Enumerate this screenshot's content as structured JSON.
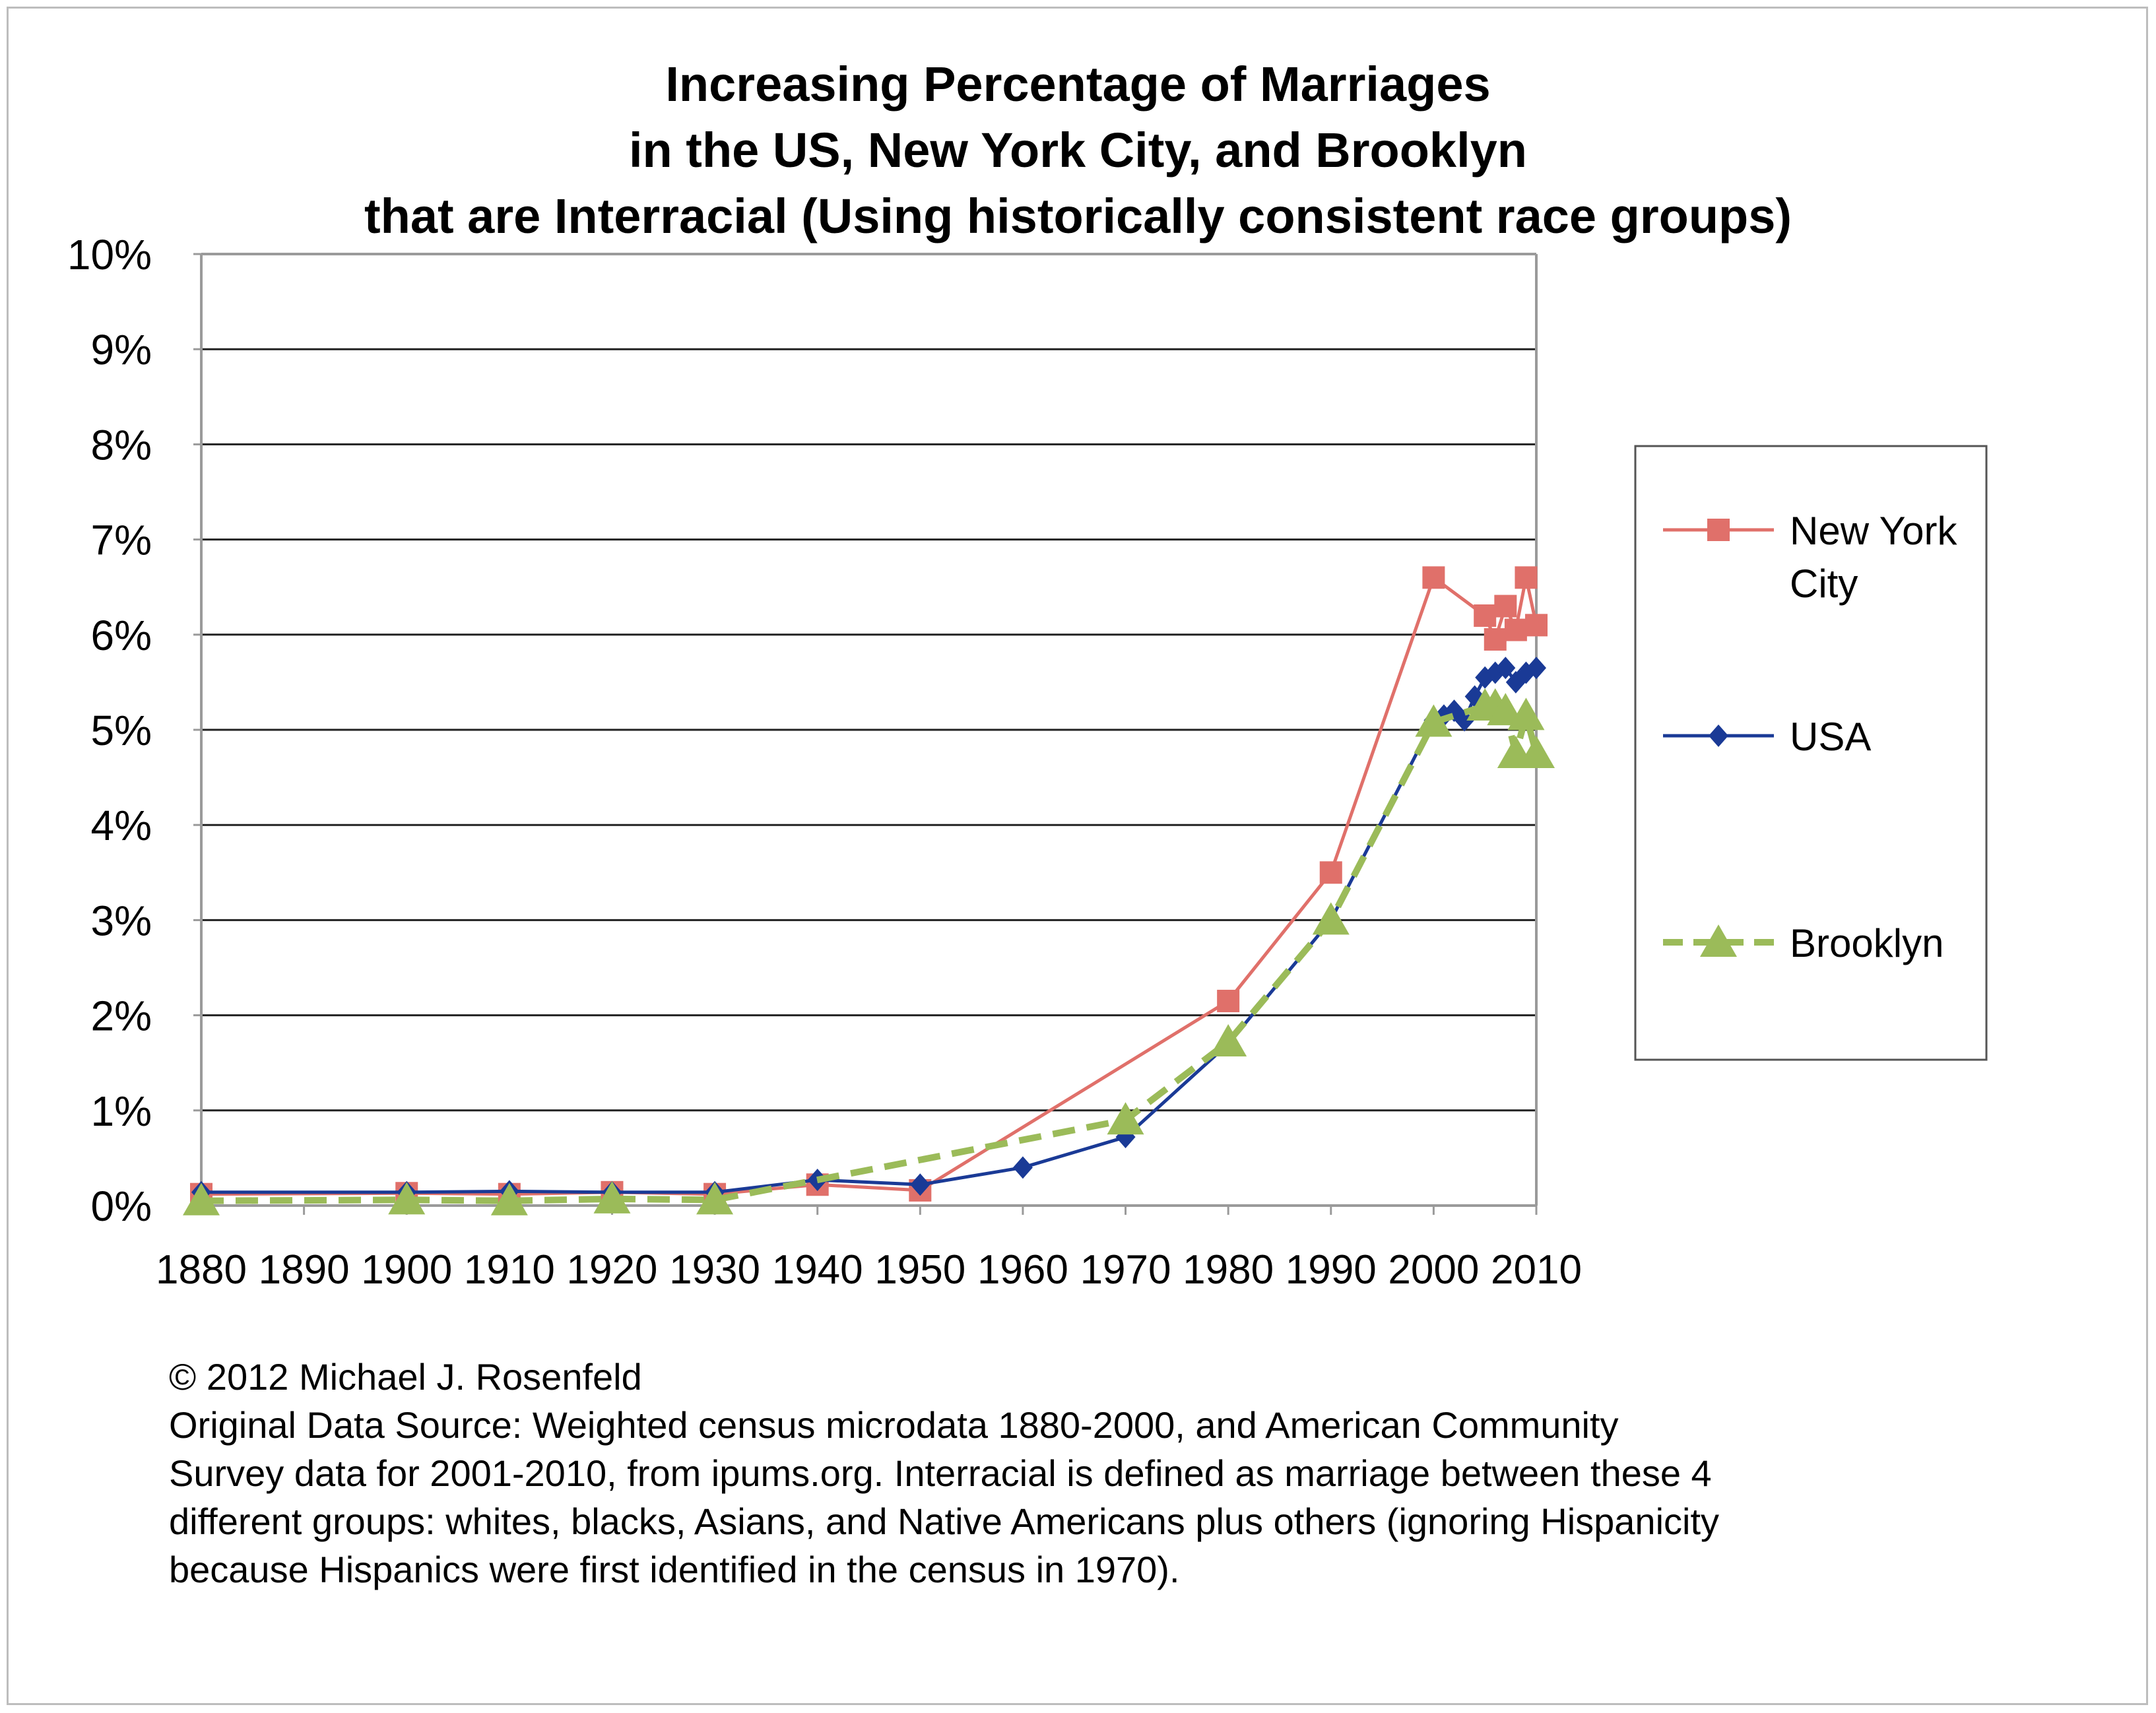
{
  "chart_data": {
    "type": "line",
    "title_lines": [
      "Increasing Percentage of Marriages",
      "in the US, New York City, and Brooklyn",
      "that are Interracial (Using historically consistent race groups)"
    ],
    "xlabel": "",
    "ylabel": "",
    "x_tick_labels": [
      "1880",
      "1890",
      "1900",
      "1910",
      "1920",
      "1930",
      "1940",
      "1950",
      "1960",
      "1970",
      "1980",
      "1990",
      "2000",
      "2010"
    ],
    "y_tick_labels": [
      "0%",
      "1%",
      "2%",
      "3%",
      "4%",
      "5%",
      "6%",
      "7%",
      "8%",
      "9%",
      "10%"
    ],
    "xlim": [
      1880,
      2010
    ],
    "ylim": [
      0,
      10
    ],
    "grid": "horizontal",
    "legend_position": "right",
    "series": [
      {
        "name": "New York City",
        "legend_lines": [
          "New York",
          "City"
        ],
        "color": "#e0706a",
        "marker": "square",
        "dash": false,
        "x": [
          1880,
          1900,
          1910,
          1920,
          1930,
          1940,
          1950,
          1980,
          1990,
          2000,
          2005,
          2006,
          2007,
          2008,
          2009,
          2010
        ],
        "y": [
          0.12,
          0.13,
          0.12,
          0.14,
          0.12,
          0.22,
          0.16,
          2.15,
          3.5,
          6.6,
          6.2,
          5.95,
          6.3,
          6.05,
          6.6,
          6.1
        ]
      },
      {
        "name": "USA",
        "legend_lines": [
          "USA"
        ],
        "color": "#1a3a96",
        "marker": "diamond",
        "dash": false,
        "x": [
          1880,
          1900,
          1910,
          1920,
          1930,
          1940,
          1950,
          1960,
          1970,
          1980,
          1990,
          2000,
          2001,
          2002,
          2003,
          2004,
          2005,
          2006,
          2007,
          2008,
          2009,
          2010
        ],
        "y": [
          0.14,
          0.14,
          0.15,
          0.14,
          0.14,
          0.27,
          0.22,
          0.4,
          0.72,
          1.7,
          3.0,
          5.1,
          5.15,
          5.2,
          5.1,
          5.35,
          5.55,
          5.6,
          5.65,
          5.5,
          5.6,
          5.65
        ]
      },
      {
        "name": "Brooklyn",
        "legend_lines": [
          "Brooklyn"
        ],
        "color": "#9bbb59",
        "marker": "triangle",
        "dash": true,
        "x": [
          1880,
          1900,
          1910,
          1920,
          1930,
          1970,
          1980,
          1990,
          2000,
          2005,
          2006,
          2007,
          2008,
          2009,
          2010
        ],
        "y": [
          0.05,
          0.06,
          0.05,
          0.07,
          0.06,
          0.9,
          1.72,
          3.0,
          5.08,
          5.25,
          5.25,
          5.2,
          4.75,
          5.15,
          4.75
        ]
      }
    ]
  },
  "footer": {
    "lines": [
      "© 2012 Michael J. Rosenfeld",
      "Original Data Source: Weighted census microdata 1880-2000, and American Community",
      "Survey data for 2001-2010, from ipums.org. Interracial is defined as marriage between these 4",
      "different groups: whites, blacks, Asians, and Native Americans plus others (ignoring Hispanicity",
      "because Hispanics were first identified in the census in 1970)."
    ]
  }
}
